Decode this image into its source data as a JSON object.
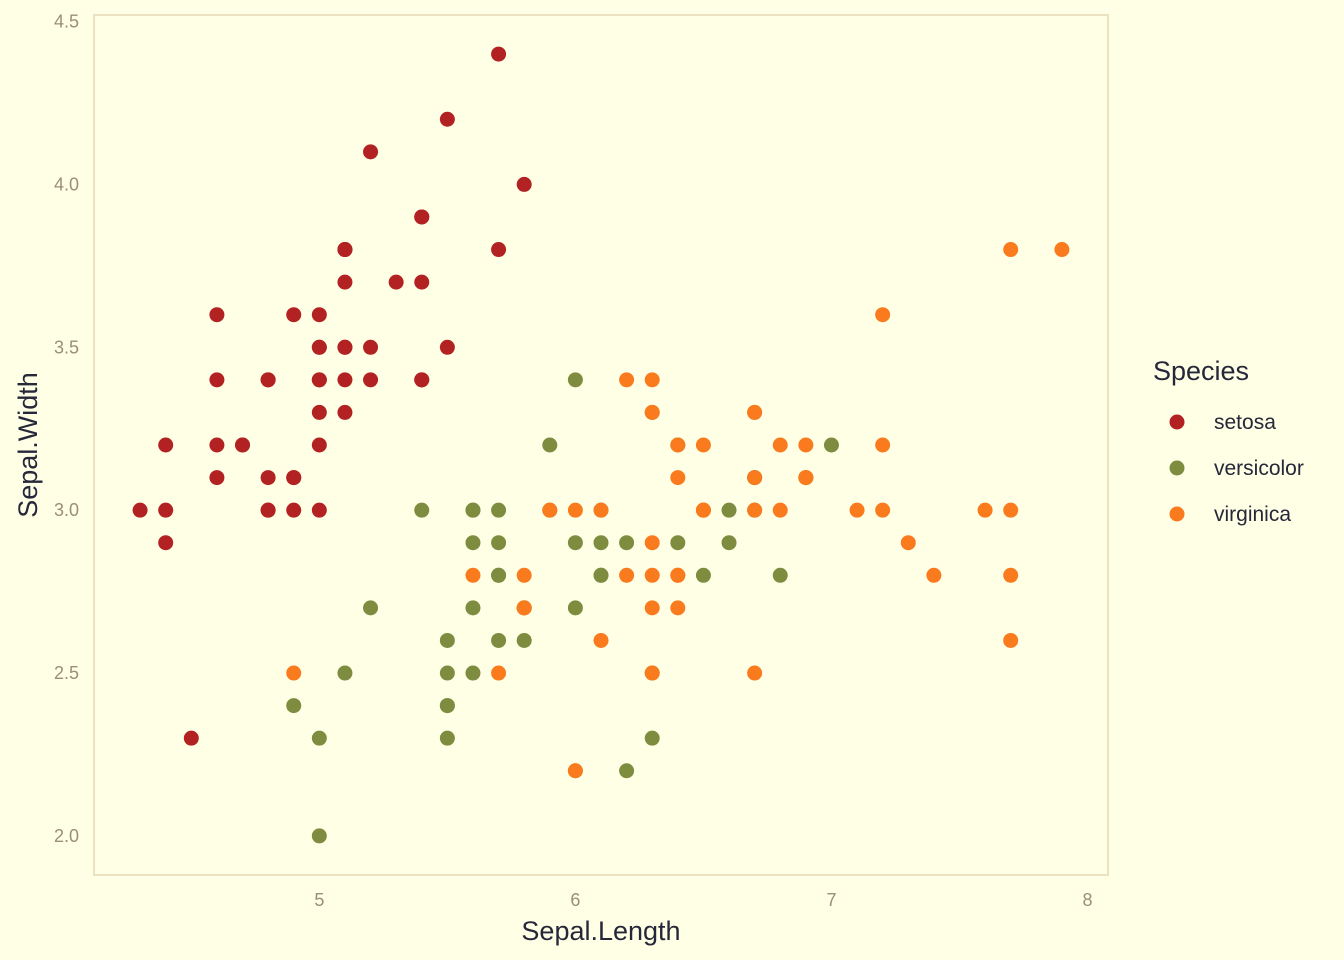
{
  "chart_data": {
    "type": "scatter",
    "xlabel": "Sepal.Length",
    "ylabel": "Sepal.Width",
    "xlim": [
      4.12,
      8.08
    ],
    "ylim": [
      1.88,
      4.52
    ],
    "x_ticks": [
      {
        "value": 5,
        "label": "5"
      },
      {
        "value": 6,
        "label": "6"
      },
      {
        "value": 7,
        "label": "7"
      },
      {
        "value": 8,
        "label": "8"
      }
    ],
    "y_ticks": [
      {
        "value": 2.0,
        "label": "2.0"
      },
      {
        "value": 2.5,
        "label": "2.5"
      },
      {
        "value": 3.0,
        "label": "3.0"
      },
      {
        "value": 3.5,
        "label": "3.5"
      },
      {
        "value": 4.0,
        "label": "4.0"
      },
      {
        "value": 4.5,
        "label": "4.5"
      }
    ],
    "grid": false,
    "legend": {
      "title": "Species",
      "position": "right"
    },
    "colors": {
      "background": "#FFFFE6",
      "panel_border": "#EBE2C2",
      "setosa": "#B22222",
      "versicolor": "#7E8C40",
      "virginica": "#F97B1E"
    },
    "series": [
      {
        "name": "setosa",
        "points": [
          [
            5.1,
            3.5
          ],
          [
            4.9,
            3.0
          ],
          [
            4.7,
            3.2
          ],
          [
            4.6,
            3.1
          ],
          [
            5.0,
            3.6
          ],
          [
            5.4,
            3.9
          ],
          [
            4.6,
            3.4
          ],
          [
            5.0,
            3.4
          ],
          [
            4.4,
            2.9
          ],
          [
            4.9,
            3.1
          ],
          [
            5.4,
            3.7
          ],
          [
            4.8,
            3.4
          ],
          [
            4.8,
            3.0
          ],
          [
            4.3,
            3.0
          ],
          [
            5.8,
            4.0
          ],
          [
            5.7,
            4.4
          ],
          [
            5.4,
            3.9
          ],
          [
            5.1,
            3.5
          ],
          [
            5.7,
            3.8
          ],
          [
            5.1,
            3.8
          ],
          [
            5.4,
            3.4
          ],
          [
            5.1,
            3.7
          ],
          [
            4.6,
            3.6
          ],
          [
            5.1,
            3.3
          ],
          [
            4.8,
            3.4
          ],
          [
            5.0,
            3.0
          ],
          [
            5.0,
            3.4
          ],
          [
            5.2,
            3.5
          ],
          [
            5.2,
            3.4
          ],
          [
            4.7,
            3.2
          ],
          [
            4.8,
            3.1
          ],
          [
            5.4,
            3.4
          ],
          [
            5.2,
            4.1
          ],
          [
            5.5,
            4.2
          ],
          [
            4.9,
            3.1
          ],
          [
            5.0,
            3.2
          ],
          [
            5.5,
            3.5
          ],
          [
            4.9,
            3.6
          ],
          [
            4.4,
            3.0
          ],
          [
            5.1,
            3.4
          ],
          [
            5.0,
            3.5
          ],
          [
            4.5,
            2.3
          ],
          [
            4.4,
            3.2
          ],
          [
            5.0,
            3.5
          ],
          [
            5.1,
            3.8
          ],
          [
            4.8,
            3.0
          ],
          [
            5.1,
            3.8
          ],
          [
            4.6,
            3.2
          ],
          [
            5.3,
            3.7
          ],
          [
            5.0,
            3.3
          ]
        ]
      },
      {
        "name": "versicolor",
        "points": [
          [
            7.0,
            3.2
          ],
          [
            6.4,
            3.2
          ],
          [
            6.9,
            3.1
          ],
          [
            5.5,
            2.3
          ],
          [
            6.5,
            2.8
          ],
          [
            5.7,
            2.8
          ],
          [
            6.3,
            3.3
          ],
          [
            4.9,
            2.4
          ],
          [
            6.6,
            2.9
          ],
          [
            5.2,
            2.7
          ],
          [
            5.0,
            2.0
          ],
          [
            5.9,
            3.0
          ],
          [
            6.0,
            2.2
          ],
          [
            6.1,
            2.9
          ],
          [
            5.6,
            2.9
          ],
          [
            6.7,
            3.1
          ],
          [
            5.6,
            3.0
          ],
          [
            5.8,
            2.7
          ],
          [
            6.2,
            2.2
          ],
          [
            5.6,
            2.5
          ],
          [
            5.9,
            3.2
          ],
          [
            6.1,
            2.8
          ],
          [
            6.3,
            2.5
          ],
          [
            6.1,
            2.8
          ],
          [
            6.4,
            2.9
          ],
          [
            6.6,
            3.0
          ],
          [
            6.8,
            2.8
          ],
          [
            6.7,
            3.0
          ],
          [
            6.0,
            2.9
          ],
          [
            5.7,
            2.6
          ],
          [
            5.5,
            2.4
          ],
          [
            5.5,
            2.4
          ],
          [
            5.8,
            2.7
          ],
          [
            6.0,
            2.7
          ],
          [
            5.4,
            3.0
          ],
          [
            6.0,
            3.4
          ],
          [
            6.7,
            3.1
          ],
          [
            6.3,
            2.3
          ],
          [
            5.6,
            3.0
          ],
          [
            5.5,
            2.5
          ],
          [
            5.5,
            2.6
          ],
          [
            6.1,
            3.0
          ],
          [
            5.8,
            2.6
          ],
          [
            5.0,
            2.3
          ],
          [
            5.6,
            2.7
          ],
          [
            5.7,
            3.0
          ],
          [
            5.7,
            2.9
          ],
          [
            6.2,
            2.9
          ],
          [
            5.1,
            2.5
          ],
          [
            5.7,
            2.8
          ]
        ]
      },
      {
        "name": "virginica",
        "points": [
          [
            6.3,
            3.3
          ],
          [
            5.8,
            2.7
          ],
          [
            7.1,
            3.0
          ],
          [
            6.3,
            2.9
          ],
          [
            6.5,
            3.0
          ],
          [
            7.6,
            3.0
          ],
          [
            4.9,
            2.5
          ],
          [
            7.3,
            2.9
          ],
          [
            6.7,
            2.5
          ],
          [
            7.2,
            3.6
          ],
          [
            6.5,
            3.2
          ],
          [
            6.4,
            2.7
          ],
          [
            6.8,
            3.0
          ],
          [
            5.7,
            2.5
          ],
          [
            5.8,
            2.8
          ],
          [
            6.4,
            3.2
          ],
          [
            6.5,
            3.0
          ],
          [
            7.7,
            3.8
          ],
          [
            7.7,
            2.6
          ],
          [
            6.0,
            2.2
          ],
          [
            6.9,
            3.2
          ],
          [
            5.6,
            2.8
          ],
          [
            7.7,
            2.8
          ],
          [
            6.3,
            2.7
          ],
          [
            6.7,
            3.3
          ],
          [
            7.2,
            3.2
          ],
          [
            6.2,
            2.8
          ],
          [
            6.1,
            3.0
          ],
          [
            6.4,
            2.8
          ],
          [
            7.2,
            3.0
          ],
          [
            7.4,
            2.8
          ],
          [
            7.9,
            3.8
          ],
          [
            6.4,
            2.8
          ],
          [
            6.3,
            2.8
          ],
          [
            6.1,
            2.6
          ],
          [
            7.7,
            3.0
          ],
          [
            6.3,
            3.4
          ],
          [
            6.4,
            3.1
          ],
          [
            6.0,
            3.0
          ],
          [
            6.9,
            3.1
          ],
          [
            6.7,
            3.1
          ],
          [
            6.9,
            3.1
          ],
          [
            5.8,
            2.7
          ],
          [
            6.8,
            3.2
          ],
          [
            6.7,
            3.3
          ],
          [
            6.7,
            3.0
          ],
          [
            6.3,
            2.5
          ],
          [
            6.5,
            3.0
          ],
          [
            6.2,
            3.4
          ],
          [
            5.9,
            3.0
          ]
        ]
      }
    ]
  }
}
